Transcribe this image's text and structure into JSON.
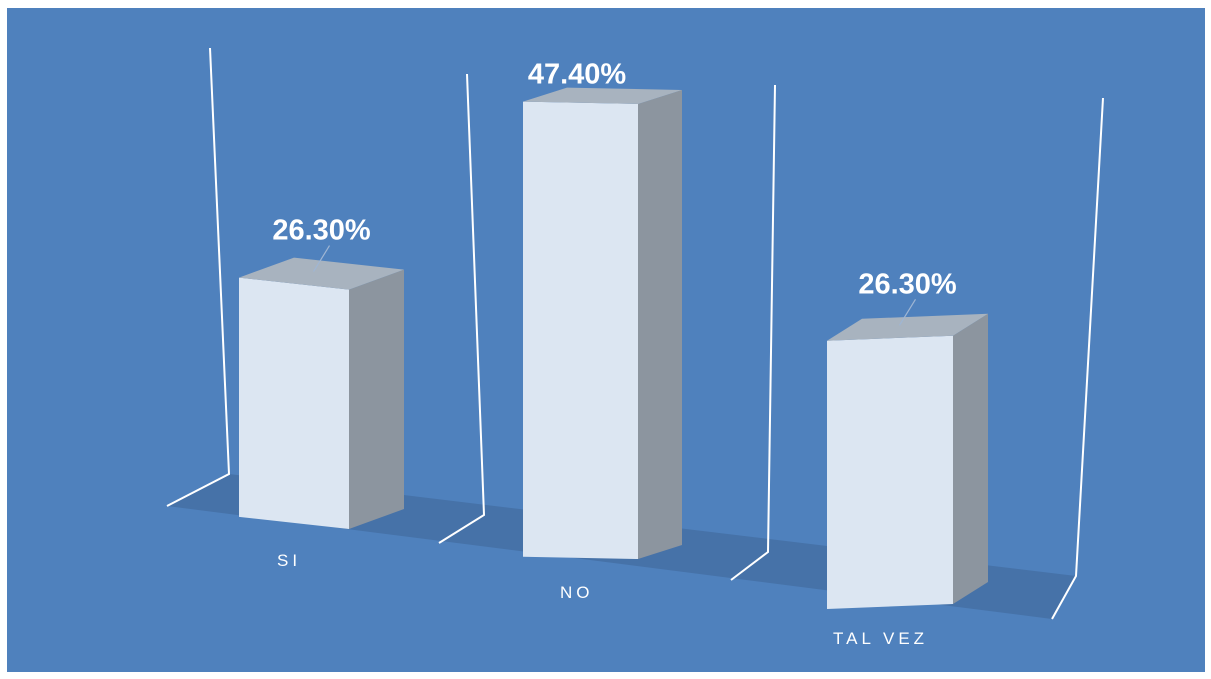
{
  "chart_data": {
    "type": "bar",
    "title": "",
    "xlabel": "",
    "ylabel": "",
    "categories": [
      "SI",
      "NO",
      "TAL VEZ"
    ],
    "values": [
      26.3,
      47.4,
      26.3
    ],
    "value_labels": [
      "26.30%",
      "47.40%",
      "26.30%"
    ],
    "ylim": [
      0,
      50
    ],
    "grid": false,
    "legend": "none",
    "three_d": true
  },
  "colors": {
    "background": "#4f81bd",
    "floor": "#4672a8",
    "bar_front": "#dce6f2",
    "bar_side": "#8c959f",
    "bar_top": "#a8b3bf",
    "frame_lines": "#ffffff",
    "text": "#ffffff"
  }
}
